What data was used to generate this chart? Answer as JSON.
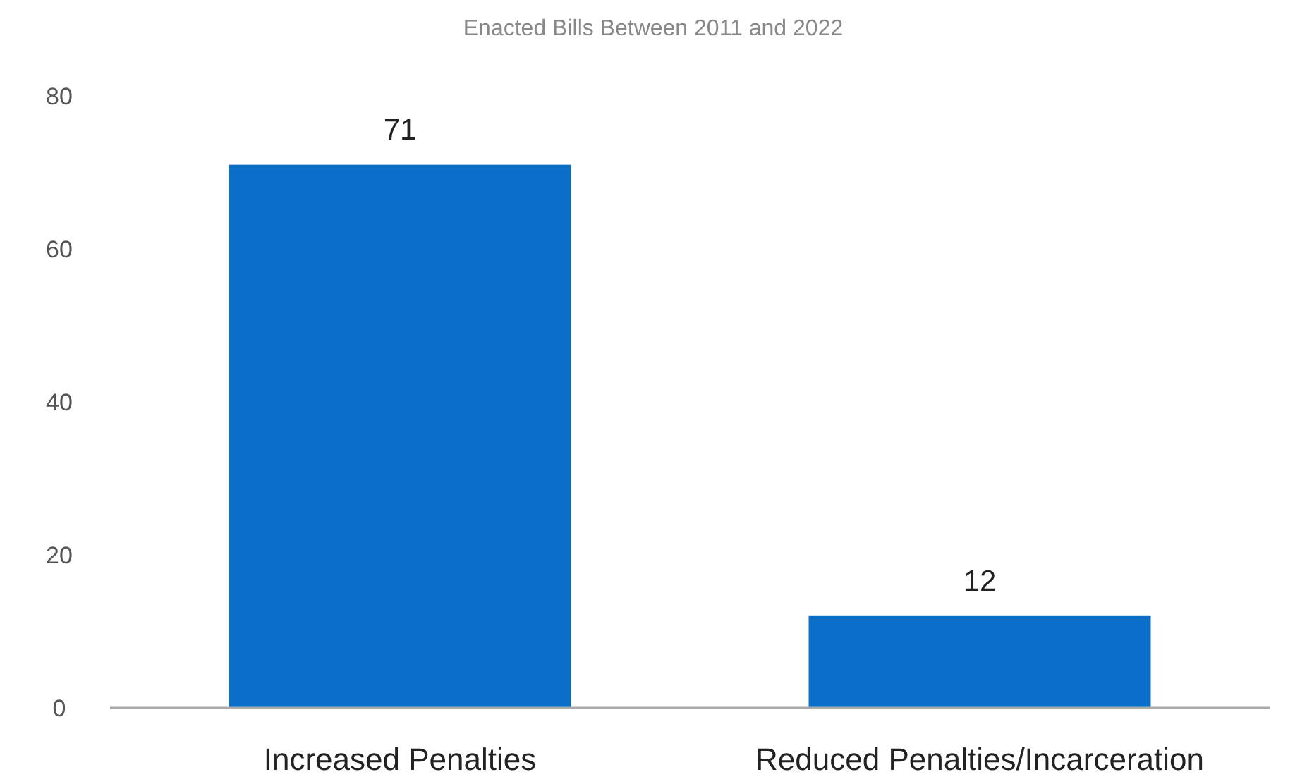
{
  "chart_data": {
    "type": "bar",
    "title": "Enacted Bills Between 2011 and 2022",
    "categories": [
      "Increased Penalties",
      "Reduced Penalties/Incarceration"
    ],
    "values": [
      71,
      12
    ],
    "color": "#0a6fc8",
    "ylim": [
      0,
      80
    ],
    "yticks": [
      0,
      20,
      40,
      60,
      80
    ],
    "grid": false,
    "data_labels": true
  }
}
